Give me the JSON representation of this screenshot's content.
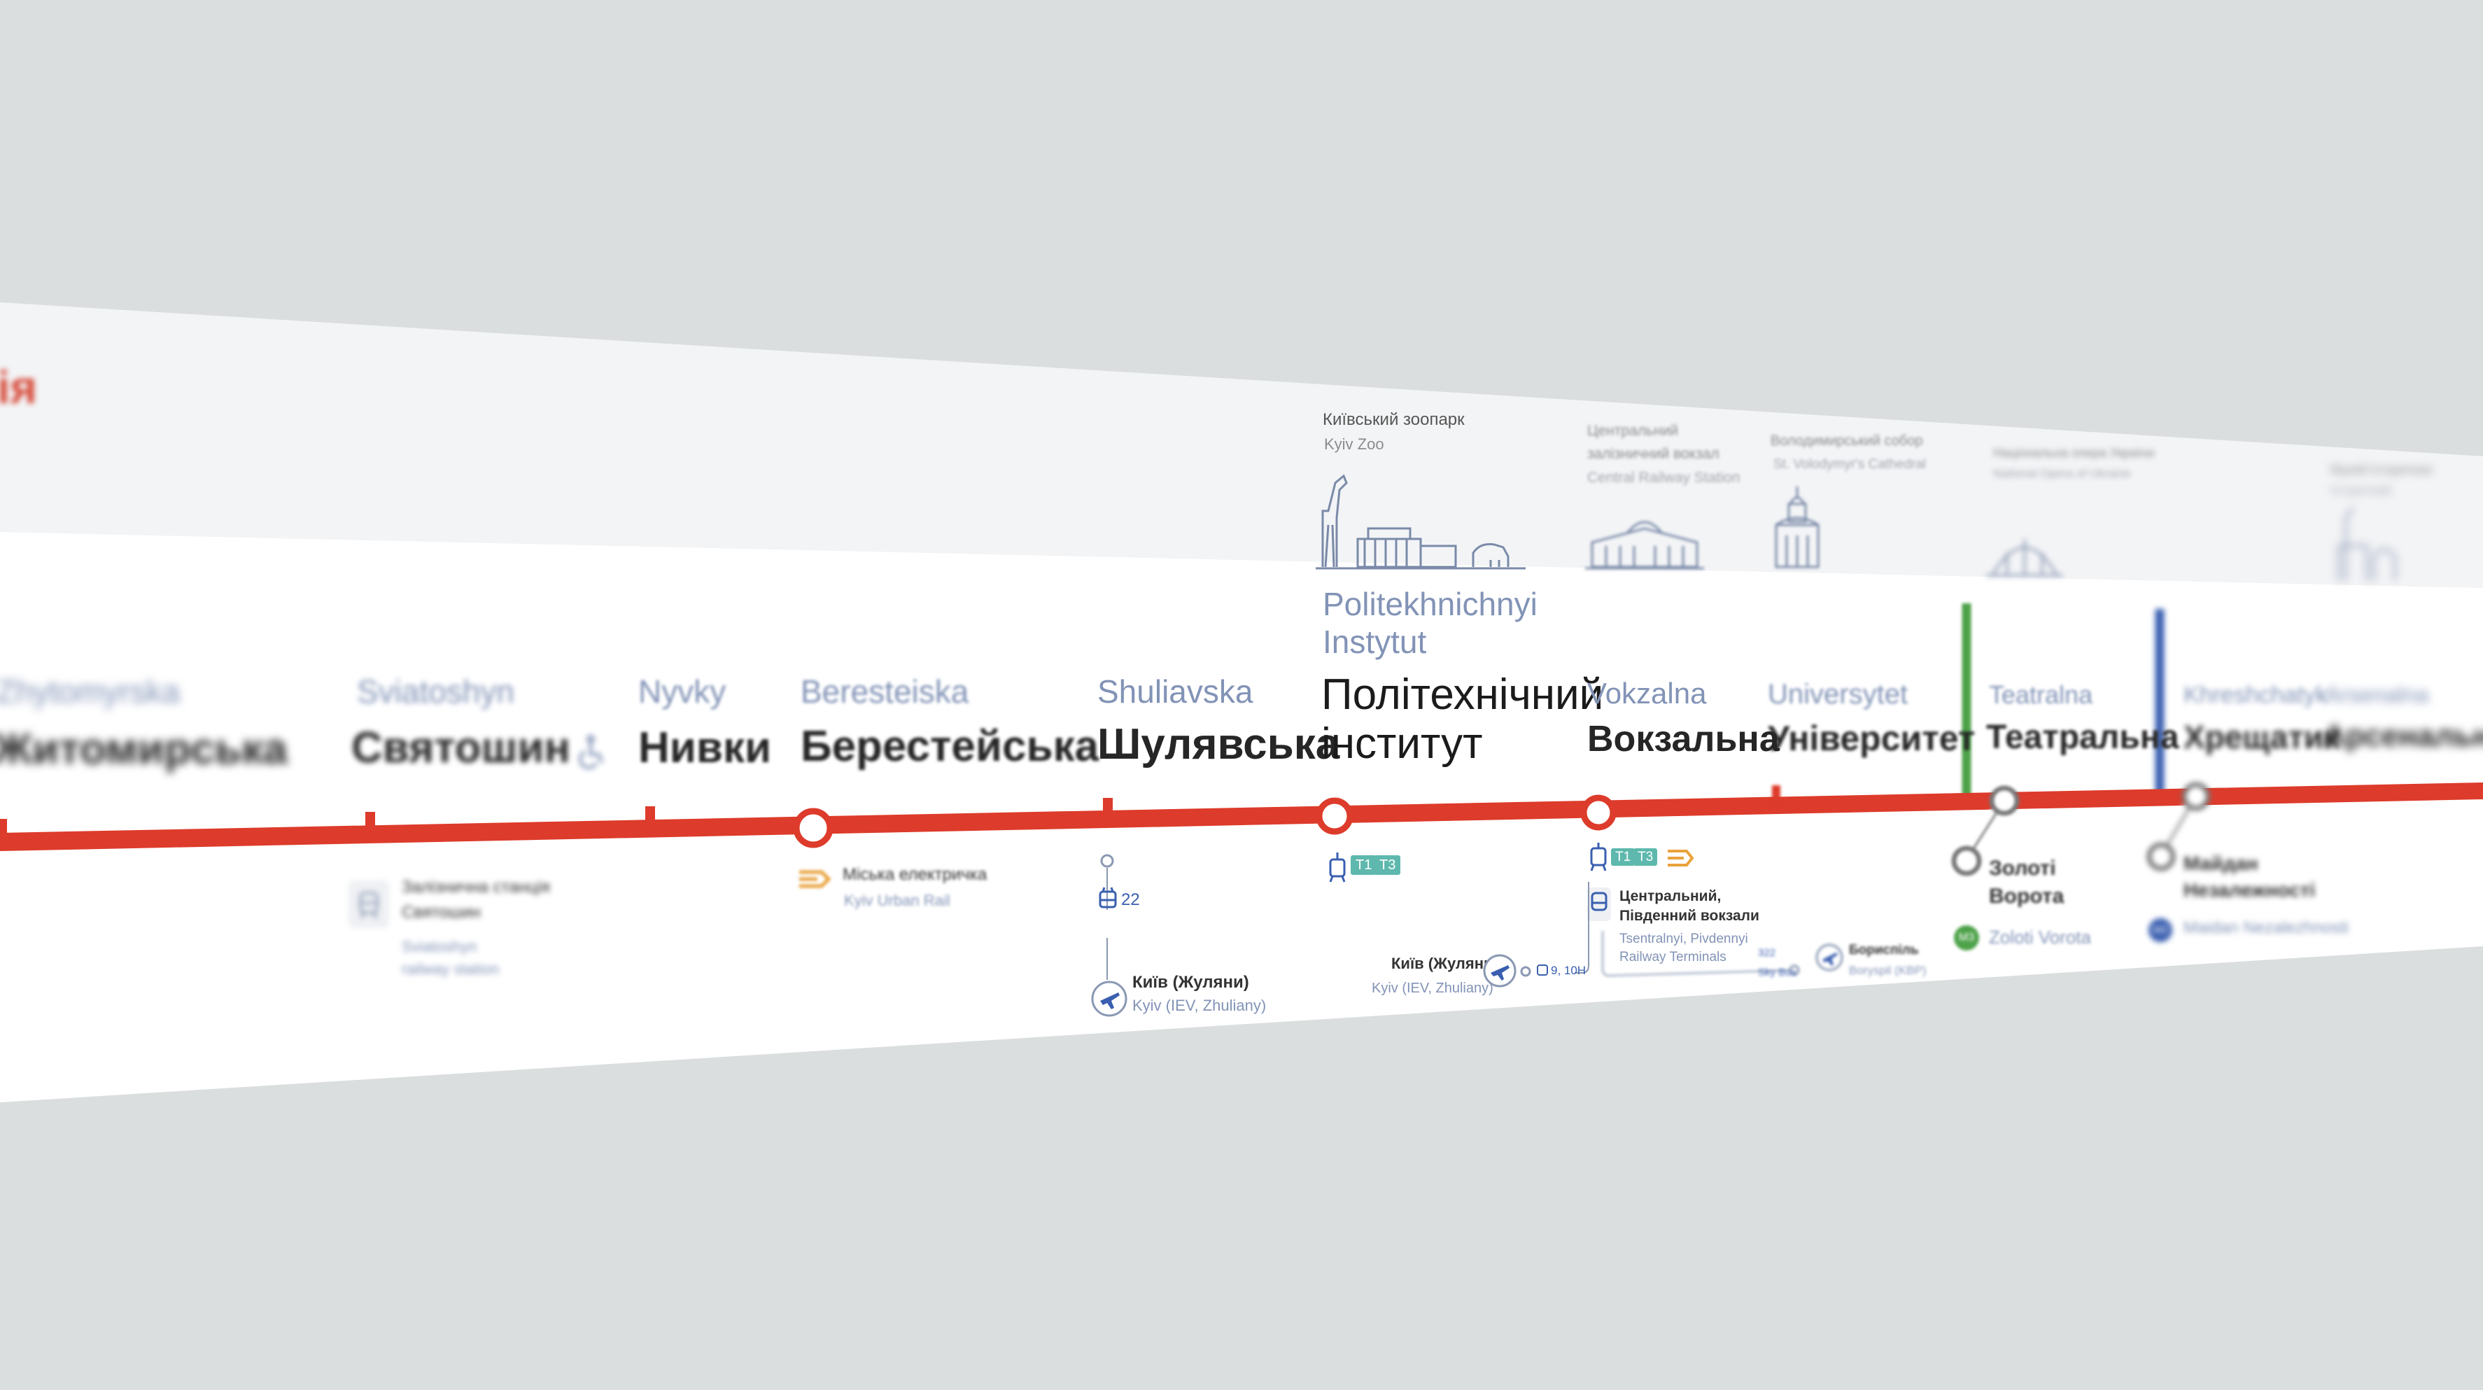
{
  "line_code_fragment": "ія",
  "stations": [
    {
      "lat": "Zhytomyrska",
      "cyr": "Житомирська"
    },
    {
      "lat": "Sviatoshyn",
      "cyr": "Святошин"
    },
    {
      "lat": "Nyvky",
      "cyr": "Нивки"
    },
    {
      "lat": "Beresteiska",
      "cyr": "Берестейська"
    },
    {
      "lat": "Shuliavska",
      "cyr": "Шулявська"
    },
    {
      "lat1": "Politekhnichnyi",
      "lat2": "Instytut",
      "cyr1": "Політехнічний",
      "cyr2": "інститут"
    },
    {
      "lat": "Vokzalna",
      "cyr": "Вокзальна"
    },
    {
      "lat": "Universytet",
      "cyr": "Університет"
    },
    {
      "lat": "Teatralna",
      "cyr": "Театральна"
    },
    {
      "lat": "Khreshchatyk",
      "cyr": "Хрещатик"
    },
    {
      "lat": "Arsenalna",
      "cyr": "Арсенальна"
    }
  ],
  "landmarks": [
    {
      "uk": "Київський зоопарк",
      "en": "Kyiv Zoo"
    },
    {
      "uk1": "Центральний",
      "uk2": "залізничний вокзал",
      "en": "Central Railway Station"
    },
    {
      "uk": "Володимирський собор",
      "en": "St. Volodymyr's Cathedral"
    },
    {
      "uk": "Національна опера України",
      "en": "National Opera of Ukraine"
    },
    {
      "uk": "Музей історичних",
      "en": "Історичний"
    }
  ],
  "connections": {
    "sviatoshyn_rail": {
      "uk1": "Залізнична станція",
      "uk2": "Святошин",
      "en1": "Sviatoshyn",
      "en2": "railway station"
    },
    "urban_rail": {
      "uk": "Міська електричка",
      "en": "Kyiv Urban Rail"
    },
    "shuliavska_trolley": "22",
    "airport_zhuliany": {
      "uk": "Київ (Жуляни)",
      "en": "Kyiv (IEV, Zhuliany)"
    },
    "terminals": [
      "T1",
      "T3"
    ],
    "vokzal_bus": "9, 10Н",
    "vokzal_terminals": {
      "uk1": "Центральний,",
      "uk2": "Південний вокзали",
      "en1": "Tsentralnyi, Pivdennyi",
      "en2": "Railway Terminals"
    },
    "boryspil": {
      "uk": "Бориспіль",
      "en": "Boryspil (KBP)"
    },
    "boryspil_routes": [
      "322",
      "Sky Bus"
    ],
    "zoloti_vorota": {
      "uk1": "Золоті",
      "uk2": "Ворота",
      "en": "Zoloti Vorota",
      "badge": "М3"
    },
    "maidan": {
      "uk1": "Майдан",
      "uk2": "Незалежності",
      "en": "Maidan Nezalezhnosti",
      "badge": "М2"
    }
  },
  "colors": {
    "red_line": "#dd3b2b",
    "green_line": "#4ea24a",
    "blue_line": "#3a5fb0",
    "latin_text": "#8293b6",
    "teal_badge": "#5eb8ad",
    "urban_rail": "#e9a23b"
  }
}
